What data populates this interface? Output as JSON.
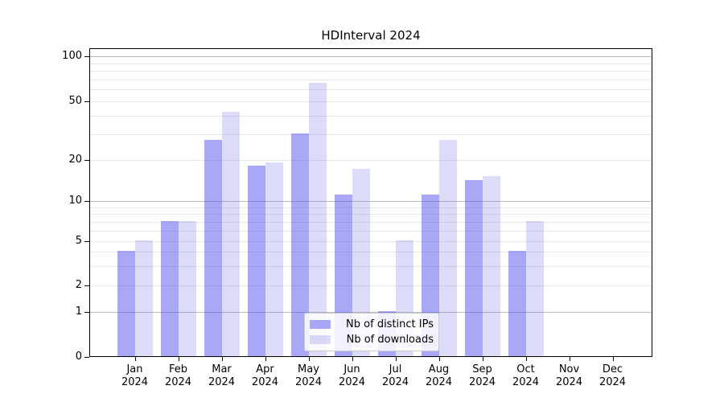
{
  "title": "HDInterval 2024",
  "chart_data": {
    "type": "bar",
    "title": "HDInterval 2024",
    "categories": [
      "Jan",
      "Feb",
      "Mar",
      "Apr",
      "May",
      "Jun",
      "Jul",
      "Aug",
      "Sep",
      "Oct",
      "Nov",
      "Dec"
    ],
    "year_label": "2024",
    "series": [
      {
        "name": "Nb of distinct IPs",
        "color": "rgba(83,81,239,0.5)",
        "values": [
          4,
          7,
          27,
          18,
          30,
          11,
          1,
          11,
          14,
          4,
          0,
          0
        ]
      },
      {
        "name": "Nb of downloads",
        "color": "rgba(115,111,227,0.25)",
        "values": [
          5,
          7,
          42,
          19,
          66,
          17,
          5,
          27,
          15,
          7,
          0,
          0
        ]
      }
    ],
    "yticks": [
      0,
      1,
      2,
      5,
      10,
      20,
      50,
      100
    ],
    "yscale": "log-like (squashed toward zero, ticks 0/1/2/5/10/20/50/100)",
    "ylim": [
      0,
      112
    ],
    "xlabel": "",
    "ylabel": "",
    "legend_position": "lower center, inside axes",
    "grid": "horizontal only; darker lines at 1, 10, 100; faint minors at 2-9 and 20-90"
  },
  "colors": {
    "background": "#ffffff",
    "spine": "#000000",
    "grid_major": "#bbbbbb",
    "grid_minor": "#e9e9e9",
    "tick_label": "#000000"
  }
}
